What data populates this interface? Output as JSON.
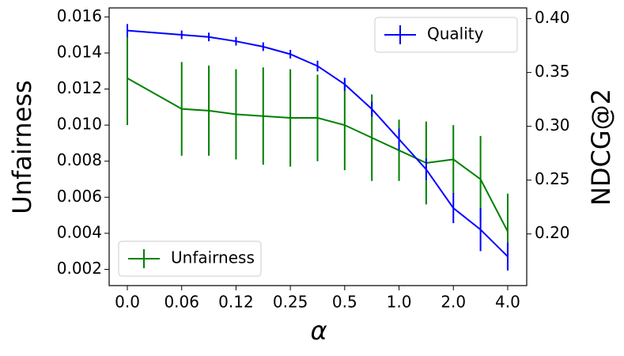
{
  "chart_data": {
    "type": "line",
    "xlabel": "α",
    "ylabel": "Unfairness",
    "y2label": "NDCG@2",
    "x": [
      0,
      2,
      3,
      4,
      5,
      6,
      7,
      8,
      9,
      10,
      11,
      12,
      13,
      14
    ],
    "xlim": [
      -0.67,
      14.7
    ],
    "xticks": [
      {
        "value": 0,
        "label": "0.0"
      },
      {
        "value": 2,
        "label": "0.06"
      },
      {
        "value": 4,
        "label": "0.12"
      },
      {
        "value": 6,
        "label": "0.25"
      },
      {
        "value": 8,
        "label": "0.5"
      },
      {
        "value": 10,
        "label": "1.0"
      },
      {
        "value": 12,
        "label": "2.0"
      },
      {
        "value": 14,
        "label": "4.0"
      }
    ],
    "ylim": [
      0.0011,
      0.0165
    ],
    "yticks": [
      0.002,
      0.004,
      0.006,
      0.008,
      {
        "value": 0.01,
        "label": "0.010"
      },
      0.012,
      0.014,
      0.016
    ],
    "y2lim": [
      0.152,
      0.41
    ],
    "y2ticks": [
      {
        "value": 0.2,
        "label": "0.20"
      },
      0.25,
      {
        "value": 0.3,
        "label": "0.30"
      },
      0.35,
      {
        "value": 0.4,
        "label": "0.40"
      }
    ],
    "series": [
      {
        "name": "Unfairness",
        "color": "#008000",
        "axis": "y",
        "legend": "lower left",
        "values": [
          0.0126,
          0.0109,
          0.0108,
          0.0106,
          0.0105,
          0.0104,
          0.0104,
          0.01,
          0.0093,
          0.0086,
          0.0079,
          0.0081,
          0.007,
          0.0041
        ],
        "errors": [
          0.0026,
          0.0026,
          0.0025,
          0.0025,
          0.0027,
          0.0027,
          0.0024,
          0.0025,
          0.0024,
          0.0017,
          0.0023,
          0.0019,
          0.0024,
          0.0021
        ]
      },
      {
        "name": "Quality",
        "color": "#0000ff",
        "axis": "y2",
        "legend": "upper right",
        "values": [
          0.389,
          0.385,
          0.383,
          0.379,
          0.374,
          0.367,
          0.356,
          0.339,
          0.316,
          0.288,
          0.26,
          0.224,
          0.204,
          0.179
        ],
        "errors": [
          0.006,
          0.004,
          0.004,
          0.004,
          0.004,
          0.004,
          0.005,
          0.006,
          0.007,
          0.01,
          0.01,
          0.014,
          0.02,
          0.013
        ]
      }
    ]
  }
}
